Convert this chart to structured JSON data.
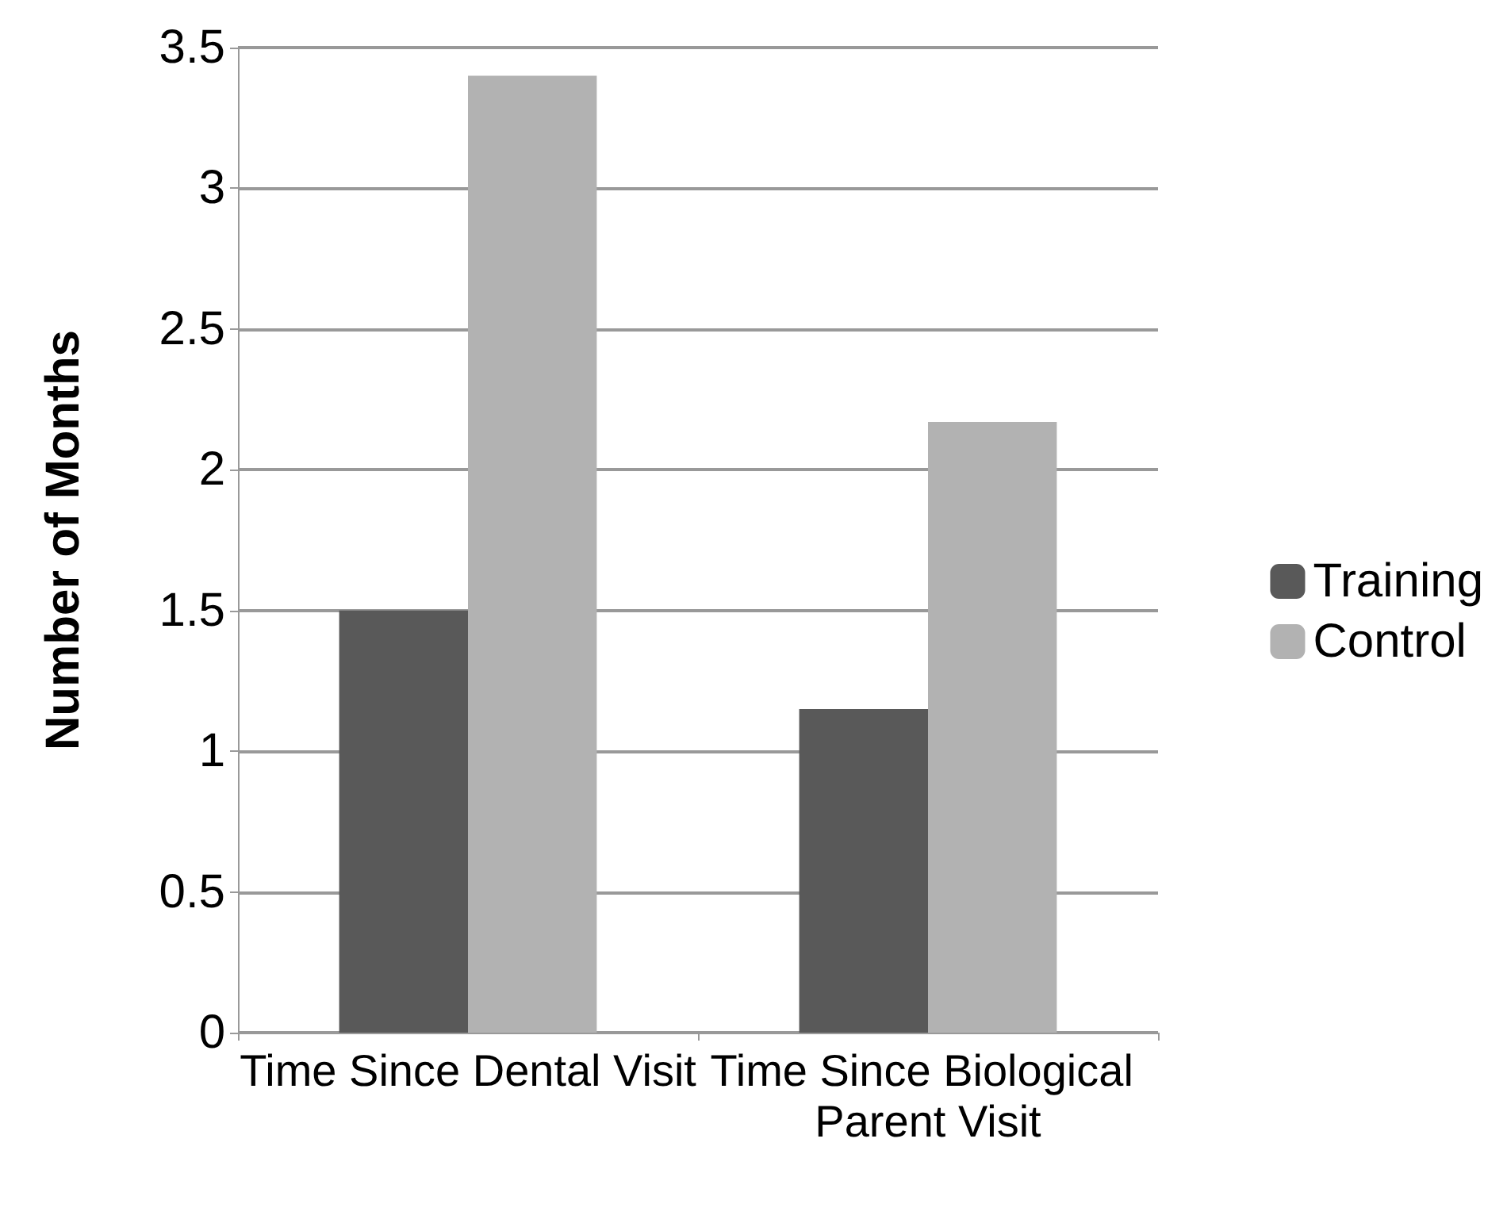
{
  "chart_data": {
    "type": "bar",
    "ylabel": "Number of Months",
    "categories": [
      "Time Since Dental Visit",
      "Time Since Biological Parent Visit"
    ],
    "series": [
      {
        "name": "Training",
        "color": "#595959",
        "values": [
          1.5,
          1.15
        ]
      },
      {
        "name": "Control",
        "color": "#b2b2b2",
        "values": [
          3.4,
          2.17
        ]
      }
    ],
    "ylim": [
      0,
      3.5
    ],
    "yticks": [
      0,
      0.5,
      1,
      1.5,
      2,
      2.5,
      3,
      3.5
    ],
    "grid": "y",
    "legend": "right"
  }
}
